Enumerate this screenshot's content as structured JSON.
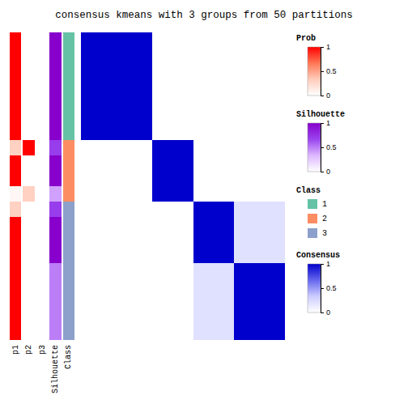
{
  "chart_data": {
    "type": "heatmap",
    "title": "consensus kmeans with 3 groups from 50 partitions",
    "cells": [
      [
        1.0,
        1.0,
        1.0,
        1.0,
        1.0,
        1.0,
        1.0,
        0.0,
        0.0,
        0.0,
        0.0,
        0.0,
        0.0,
        0.0,
        0.0,
        0.0,
        0.0,
        0.0,
        0.0,
        0.0
      ],
      [
        1.0,
        1.0,
        1.0,
        1.0,
        1.0,
        1.0,
        1.0,
        0.0,
        0.0,
        0.0,
        0.0,
        0.0,
        0.0,
        0.0,
        0.0,
        0.0,
        0.0,
        0.0,
        0.0,
        0.0
      ],
      [
        1.0,
        1.0,
        1.0,
        1.0,
        1.0,
        1.0,
        1.0,
        0.0,
        0.0,
        0.0,
        0.0,
        0.0,
        0.0,
        0.0,
        0.0,
        0.0,
        0.0,
        0.0,
        0.0,
        0.0
      ],
      [
        1.0,
        1.0,
        1.0,
        1.0,
        1.0,
        1.0,
        1.0,
        0.0,
        0.0,
        0.0,
        0.0,
        0.0,
        0.0,
        0.0,
        0.0,
        0.0,
        0.0,
        0.0,
        0.0,
        0.0
      ],
      [
        1.0,
        1.0,
        1.0,
        1.0,
        1.0,
        1.0,
        1.0,
        0.0,
        0.0,
        0.0,
        0.0,
        0.0,
        0.0,
        0.0,
        0.0,
        0.0,
        0.0,
        0.0,
        0.0,
        0.0
      ],
      [
        1.0,
        1.0,
        1.0,
        1.0,
        1.0,
        1.0,
        1.0,
        0.0,
        0.0,
        0.0,
        0.0,
        0.0,
        0.0,
        0.0,
        0.0,
        0.0,
        0.0,
        0.0,
        0.0,
        0.0
      ],
      [
        1.0,
        1.0,
        1.0,
        1.0,
        1.0,
        1.0,
        1.0,
        0.0,
        0.0,
        0.0,
        0.0,
        0.0,
        0.0,
        0.0,
        0.0,
        0.0,
        0.0,
        0.0,
        0.0,
        0.0
      ],
      [
        0.0,
        0.0,
        0.0,
        0.0,
        0.0,
        0.0,
        0.0,
        1.0,
        1.0,
        1.0,
        1.0,
        0.0,
        0.0,
        0.0,
        0.0,
        0.0,
        0.0,
        0.0,
        0.0,
        0.0
      ],
      [
        0.0,
        0.0,
        0.0,
        0.0,
        0.0,
        0.0,
        0.0,
        1.0,
        1.0,
        1.0,
        1.0,
        0.0,
        0.0,
        0.0,
        0.0,
        0.0,
        0.0,
        0.0,
        0.0,
        0.0
      ],
      [
        0.0,
        0.0,
        0.0,
        0.0,
        0.0,
        0.0,
        0.0,
        1.0,
        1.0,
        1.0,
        1.0,
        0.0,
        0.0,
        0.0,
        0.0,
        0.0,
        0.0,
        0.0,
        0.0,
        0.0
      ],
      [
        0.0,
        0.0,
        0.0,
        0.0,
        0.0,
        0.0,
        0.0,
        1.0,
        1.0,
        1.0,
        1.0,
        0.0,
        0.0,
        0.0,
        0.0,
        0.0,
        0.0,
        0.0,
        0.0,
        0.0
      ],
      [
        0.0,
        0.0,
        0.0,
        0.0,
        0.0,
        0.0,
        0.0,
        0.0,
        0.0,
        0.0,
        0.0,
        1.0,
        1.0,
        1.0,
        1.0,
        0.2,
        0.2,
        0.2,
        0.2,
        0.2
      ],
      [
        0.0,
        0.0,
        0.0,
        0.0,
        0.0,
        0.0,
        0.0,
        0.0,
        0.0,
        0.0,
        0.0,
        1.0,
        1.0,
        1.0,
        1.0,
        0.2,
        0.2,
        0.2,
        0.2,
        0.2
      ],
      [
        0.0,
        0.0,
        0.0,
        0.0,
        0.0,
        0.0,
        0.0,
        0.0,
        0.0,
        0.0,
        0.0,
        1.0,
        1.0,
        1.0,
        1.0,
        0.2,
        0.2,
        0.2,
        0.2,
        0.2
      ],
      [
        0.0,
        0.0,
        0.0,
        0.0,
        0.0,
        0.0,
        0.0,
        0.0,
        0.0,
        0.0,
        0.0,
        1.0,
        1.0,
        1.0,
        1.0,
        0.2,
        0.2,
        0.2,
        0.2,
        0.2
      ],
      [
        0.0,
        0.0,
        0.0,
        0.0,
        0.0,
        0.0,
        0.0,
        0.0,
        0.0,
        0.0,
        0.0,
        0.2,
        0.2,
        0.2,
        0.2,
        1.0,
        1.0,
        1.0,
        1.0,
        1.0
      ],
      [
        0.0,
        0.0,
        0.0,
        0.0,
        0.0,
        0.0,
        0.0,
        0.0,
        0.0,
        0.0,
        0.0,
        0.2,
        0.2,
        0.2,
        0.2,
        1.0,
        1.0,
        1.0,
        1.0,
        1.0
      ],
      [
        0.0,
        0.0,
        0.0,
        0.0,
        0.0,
        0.0,
        0.0,
        0.0,
        0.0,
        0.0,
        0.0,
        0.2,
        0.2,
        0.2,
        0.2,
        1.0,
        1.0,
        1.0,
        1.0,
        1.0
      ],
      [
        0.0,
        0.0,
        0.0,
        0.0,
        0.0,
        0.0,
        0.0,
        0.0,
        0.0,
        0.0,
        0.0,
        0.2,
        0.2,
        0.2,
        0.2,
        1.0,
        1.0,
        1.0,
        1.0,
        1.0
      ],
      [
        0.0,
        0.0,
        0.0,
        0.0,
        0.0,
        0.0,
        0.0,
        0.0,
        0.0,
        0.0,
        0.0,
        0.2,
        0.2,
        0.2,
        0.2,
        1.0,
        1.0,
        1.0,
        1.0,
        1.0
      ]
    ],
    "cells_scale": "Consensus",
    "annotation_bars": [
      {
        "name": "p1",
        "scale": "Prob",
        "values": [
          1.0,
          1.0,
          1.0,
          1.0,
          1.0,
          1.0,
          1.0,
          0.3,
          1.0,
          1.0,
          0.05,
          0.3,
          1.0,
          1.0,
          1.0,
          1.0,
          1.0,
          1.0,
          1.0,
          1.0
        ]
      },
      {
        "name": "p2",
        "scale": "Prob",
        "values": [
          0.0,
          0.0,
          0.0,
          0.0,
          0.0,
          0.0,
          0.0,
          1.0,
          0.0,
          0.0,
          0.3,
          0.0,
          0.0,
          0.0,
          0.0,
          0.0,
          0.0,
          0.0,
          0.0,
          0.0
        ]
      },
      {
        "name": "p3",
        "scale": "Prob",
        "values": [
          0.0,
          0.0,
          0.0,
          0.0,
          0.0,
          0.0,
          0.0,
          0.0,
          0.0,
          0.0,
          0.0,
          0.0,
          0.0,
          0.0,
          0.0,
          0.0,
          0.0,
          0.0,
          0.0,
          0.0
        ]
      },
      {
        "name": "Silhouette",
        "scale": "Silhouette",
        "values": [
          1.0,
          1.0,
          1.0,
          1.0,
          1.0,
          1.0,
          1.0,
          0.7,
          1.0,
          1.0,
          0.4,
          0.7,
          1.0,
          1.0,
          1.0,
          0.5,
          0.5,
          0.5,
          0.5,
          0.5
        ]
      },
      {
        "name": "Class",
        "scale": "Class",
        "values": [
          1,
          1,
          1,
          1,
          1,
          1,
          1,
          2,
          2,
          2,
          2,
          3,
          3,
          3,
          3,
          3,
          3,
          3,
          3,
          3
        ]
      }
    ],
    "legends": [
      {
        "name": "Prob",
        "colors": [
          "#FFFFFF",
          "#FFCCBB",
          "#FF7755",
          "#FF0000"
        ],
        "range": [
          0,
          1
        ],
        "ticks": [
          1,
          0.5,
          0
        ]
      },
      {
        "name": "Silhouette",
        "colors": [
          "#FFFFFF",
          "#DDB8FF",
          "#9944EE",
          "#8800CC"
        ],
        "range": [
          0,
          1
        ],
        "ticks": [
          1,
          0.5,
          0
        ]
      },
      {
        "name": "Class",
        "categories": [
          "1",
          "2",
          "3"
        ],
        "colors": [
          "#66C2A5",
          "#FC8D62",
          "#8DA0CB"
        ]
      },
      {
        "name": "Consensus",
        "colors": [
          "#FFFFFF",
          "#CCCCFF",
          "#6666EE",
          "#0000CC"
        ],
        "range": [
          0,
          1
        ],
        "ticks": [
          1,
          0.5,
          0
        ]
      }
    ]
  }
}
